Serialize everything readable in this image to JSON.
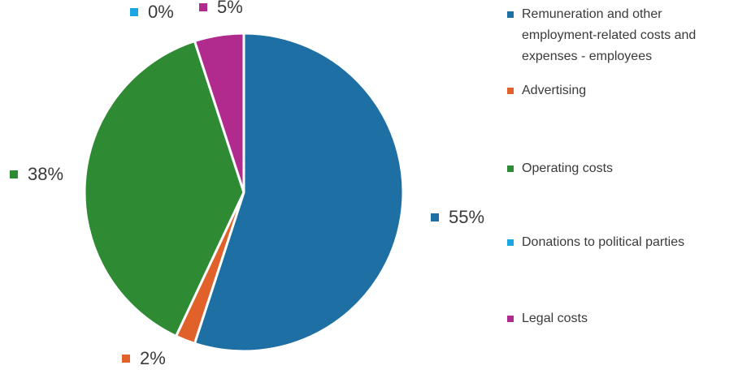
{
  "chart_data": {
    "type": "pie",
    "slices": [
      {
        "label": "Remuneration  and other employment-related costs and expenses - employees",
        "value": 55,
        "display": "55%",
        "color": "#1e6fa4"
      },
      {
        "label": "Advertising",
        "value": 2,
        "display": "2%",
        "color": "#e0622a"
      },
      {
        "label": "Operating costs",
        "value": 38,
        "display": "38%",
        "color": "#2f8a34"
      },
      {
        "label": "Donations to political parties",
        "value": 0,
        "display": "0%",
        "color": "#1aa6e3"
      },
      {
        "label": "Legal costs",
        "value": 5,
        "display": "5%",
        "color": "#b12a8d"
      }
    ],
    "legend": {
      "placement": "right",
      "entries": [
        {
          "lines": [
            "Remuneration  and other",
            "employment-related costs and",
            "expenses - employees"
          ],
          "color": "#1e6fa4"
        },
        {
          "lines": [
            "Advertising"
          ],
          "color": "#e0622a"
        },
        {
          "lines": [
            "Operating costs"
          ],
          "color": "#2f8a34"
        },
        {
          "lines": [
            "Donations to political parties"
          ],
          "color": "#1aa6e3"
        },
        {
          "lines": [
            "Legal costs"
          ],
          "color": "#b12a8d"
        }
      ]
    }
  }
}
